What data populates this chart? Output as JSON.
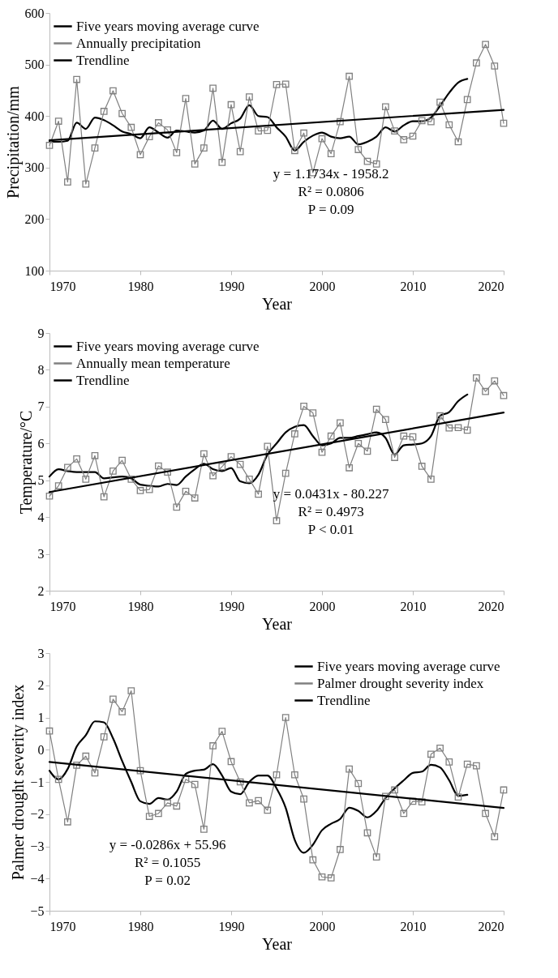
{
  "chart_data": [
    {
      "type": "line",
      "xlabel": "Year",
      "ylabel": "Precipitation/mm",
      "xlim": [
        1970,
        2020
      ],
      "xticks": [
        1970,
        1980,
        1990,
        2000,
        2010,
        2020
      ],
      "ylim": [
        100,
        600
      ],
      "yticks": [
        100,
        200,
        300,
        400,
        500,
        600
      ],
      "legend": "top left",
      "annotations": [
        "y = 1.1734x - 1958.2",
        "R² = 0.0806",
        "P = 0.09"
      ],
      "series": [
        {
          "name": "Five years moving average curve",
          "color": "#000000",
          "marker": "none",
          "x": [
            1970,
            1971,
            1972,
            1973,
            1974,
            1975,
            1976,
            1977,
            1978,
            1979,
            1980,
            1981,
            1982,
            1983,
            1984,
            1985,
            1986,
            1987,
            1988,
            1989,
            1990,
            1991,
            1992,
            1993,
            1994,
            1995,
            1996,
            1997,
            1998,
            1999,
            2000,
            2001,
            2002,
            2003,
            2004,
            2005,
            2006,
            2007,
            2008,
            2009,
            2010,
            2011,
            2012,
            2013,
            2014,
            2015,
            2016
          ],
          "values": [
            350,
            350,
            352,
            387,
            375,
            397,
            392,
            382,
            370,
            365,
            357,
            378,
            368,
            358,
            372,
            370,
            368,
            372,
            391,
            375,
            386,
            395,
            421,
            400,
            398,
            378,
            360,
            333,
            350,
            362,
            368,
            360,
            357,
            360,
            345,
            350,
            360,
            378,
            370,
            382,
            390,
            390,
            397,
            420,
            445,
            465,
            472
          ]
        },
        {
          "name": "Annually precipitation",
          "color": "#808080",
          "marker": "square",
          "x": [
            1970,
            1971,
            1972,
            1973,
            1974,
            1975,
            1976,
            1977,
            1978,
            1979,
            1980,
            1981,
            1982,
            1983,
            1984,
            1985,
            1986,
            1987,
            1988,
            1989,
            1990,
            1991,
            1992,
            1993,
            1994,
            1995,
            1996,
            1997,
            1998,
            1999,
            2000,
            2001,
            2002,
            2003,
            2004,
            2005,
            2006,
            2007,
            2008,
            2009,
            2010,
            2011,
            2012,
            2013,
            2014,
            2015,
            2016,
            2017,
            2018,
            2019,
            2020
          ],
          "values": [
            343,
            390,
            272,
            471,
            268,
            338,
            409,
            449,
            405,
            378,
            325,
            360,
            387,
            373,
            329,
            434,
            307,
            338,
            454,
            310,
            422,
            331,
            437,
            371,
            372,
            461,
            462,
            333,
            367,
            290,
            356,
            327,
            389,
            477,
            335,
            312,
            307,
            418,
            371,
            354,
            361,
            391,
            389,
            427,
            383,
            350,
            432,
            503,
            539,
            497,
            386
          ]
        },
        {
          "name": "Trendline",
          "color": "#000000",
          "marker": "none",
          "x": [
            1970,
            2020
          ],
          "values": [
            353,
            412
          ]
        }
      ]
    },
    {
      "type": "line",
      "xlabel": "Year",
      "ylabel": "Temperature/°C",
      "xlim": [
        1970,
        2020
      ],
      "xticks": [
        1970,
        1980,
        1990,
        2000,
        2010,
        2020
      ],
      "ylim": [
        2,
        9
      ],
      "yticks": [
        2,
        3,
        4,
        5,
        6,
        7,
        8,
        9
      ],
      "legend": "top left",
      "annotations": [
        "y = 0.0431x - 80.227",
        "R² = 0.4973",
        "P < 0.01"
      ],
      "series": [
        {
          "name": "Five years moving average curve",
          "color": "#000000",
          "marker": "none",
          "x": [
            1970,
            1971,
            1972,
            1973,
            1974,
            1975,
            1976,
            1977,
            1978,
            1979,
            1980,
            1981,
            1982,
            1983,
            1984,
            1985,
            1986,
            1987,
            1988,
            1989,
            1990,
            1991,
            1992,
            1993,
            1994,
            1995,
            1996,
            1997,
            1998,
            1999,
            2000,
            2001,
            2002,
            2003,
            2004,
            2005,
            2006,
            2007,
            2008,
            2009,
            2010,
            2011,
            2012,
            2013,
            2014,
            2015,
            2016
          ],
          "values": [
            5.1,
            5.3,
            5.25,
            5.22,
            5.22,
            5.22,
            5.05,
            5.08,
            5.1,
            5.05,
            4.88,
            4.85,
            4.83,
            4.9,
            4.87,
            5.1,
            5.3,
            5.45,
            5.3,
            5.25,
            5.33,
            4.97,
            4.92,
            5.15,
            5.7,
            6.0,
            6.3,
            6.45,
            6.5,
            6.2,
            5.95,
            6.0,
            6.15,
            6.15,
            6.2,
            6.25,
            6.3,
            6.15,
            5.7,
            5.95,
            5.97,
            6.0,
            6.2,
            6.75,
            6.85,
            7.15,
            7.33
          ]
        },
        {
          "name": "Annually mean temperature",
          "color": "#808080",
          "marker": "square",
          "x": [
            1970,
            1971,
            1972,
            1973,
            1974,
            1975,
            1976,
            1977,
            1978,
            1979,
            1980,
            1981,
            1982,
            1983,
            1984,
            1985,
            1986,
            1987,
            1988,
            1989,
            1990,
            1991,
            1992,
            1993,
            1994,
            1995,
            1996,
            1997,
            1998,
            1999,
            2000,
            2001,
            2002,
            2003,
            2004,
            2005,
            2006,
            2007,
            2008,
            2009,
            2010,
            2011,
            2012,
            2013,
            2014,
            2015,
            2016,
            2017,
            2018,
            2019,
            2020
          ],
          "values": [
            4.57,
            4.85,
            5.35,
            5.58,
            5.03,
            5.67,
            4.55,
            5.25,
            5.54,
            5.03,
            4.72,
            4.75,
            5.39,
            5.22,
            4.27,
            4.7,
            4.52,
            5.72,
            5.12,
            5.37,
            5.64,
            5.43,
            5.03,
            4.62,
            5.92,
            3.9,
            5.19,
            6.26,
            7.01,
            6.83,
            5.76,
            6.2,
            6.56,
            5.34,
            6.0,
            5.79,
            6.93,
            6.65,
            5.62,
            6.2,
            6.18,
            5.38,
            5.03,
            6.75,
            6.42,
            6.43,
            6.36,
            7.78,
            7.41,
            7.7,
            7.3
          ]
        },
        {
          "name": "Trendline",
          "color": "#000000",
          "marker": "none",
          "x": [
            1970,
            2020
          ],
          "values": [
            4.68,
            6.84
          ]
        }
      ]
    },
    {
      "type": "line",
      "xlabel": "Year",
      "ylabel": "Palmer drought severity index",
      "xlim": [
        1970,
        2020
      ],
      "xticks": [
        1970,
        1980,
        1990,
        2000,
        2010,
        2020
      ],
      "ylim": [
        -5,
        3
      ],
      "yticks": [
        -5,
        -4,
        -3,
        -2,
        -1,
        0,
        1,
        2,
        3
      ],
      "legend": "top right",
      "annotations": [
        "y = -0.0286x + 55.96",
        "R² = 0.1055",
        "P = 0.02"
      ],
      "series": [
        {
          "name": "Five years moving average curve",
          "color": "#000000",
          "marker": "none",
          "x": [
            1970,
            1971,
            1972,
            1973,
            1974,
            1975,
            1976,
            1977,
            1978,
            1979,
            1980,
            1981,
            1982,
            1983,
            1984,
            1985,
            1986,
            1987,
            1988,
            1989,
            1990,
            1991,
            1992,
            1993,
            1994,
            1995,
            1996,
            1997,
            1998,
            1999,
            2000,
            2001,
            2002,
            2003,
            2004,
            2005,
            2006,
            2007,
            2008,
            2009,
            2010,
            2011,
            2012,
            2013,
            2014,
            2015,
            2016
          ],
          "values": [
            -0.65,
            -0.92,
            -0.6,
            0.1,
            0.45,
            0.88,
            0.85,
            0.35,
            -0.35,
            -1.0,
            -1.6,
            -1.68,
            -1.5,
            -1.55,
            -1.3,
            -0.75,
            -0.65,
            -0.62,
            -0.45,
            -0.8,
            -1.3,
            -1.38,
            -1.0,
            -0.8,
            -0.8,
            -1.2,
            -1.8,
            -2.8,
            -3.2,
            -2.95,
            -2.5,
            -2.3,
            -2.15,
            -1.8,
            -1.9,
            -2.1,
            -1.9,
            -1.5,
            -1.2,
            -0.95,
            -0.72,
            -0.68,
            -0.47,
            -0.55,
            -0.95,
            -1.43,
            -1.4
          ]
        },
        {
          "name": "Palmer drought severity index",
          "color": "#808080",
          "marker": "square",
          "x": [
            1970,
            1971,
            1972,
            1973,
            1974,
            1975,
            1976,
            1977,
            1978,
            1979,
            1980,
            1981,
            1982,
            1983,
            1984,
            1985,
            1986,
            1987,
            1988,
            1989,
            1990,
            1991,
            1992,
            1993,
            1994,
            1995,
            1996,
            1997,
            1998,
            1999,
            2000,
            2001,
            2002,
            2003,
            2004,
            2005,
            2006,
            2007,
            2008,
            2009,
            2010,
            2011,
            2012,
            2013,
            2014,
            2015,
            2016,
            2017,
            2018,
            2019,
            2020
          ],
          "values": [
            0.58,
            -0.92,
            -2.24,
            -0.48,
            -0.2,
            -0.72,
            0.4,
            1.57,
            1.18,
            1.83,
            -0.65,
            -2.07,
            -1.98,
            -1.65,
            -1.75,
            -0.92,
            -1.08,
            -2.47,
            0.12,
            0.57,
            -0.37,
            -1.0,
            -1.65,
            -1.58,
            -1.88,
            -0.78,
            1.0,
            -0.78,
            -1.53,
            -3.42,
            -3.95,
            -3.98,
            -3.1,
            -0.6,
            -1.05,
            -2.58,
            -3.33,
            -1.45,
            -1.25,
            -1.98,
            -1.6,
            -1.62,
            -0.14,
            0.05,
            -0.38,
            -1.47,
            -0.45,
            -0.5,
            -1.98,
            -2.7,
            -1.25
          ]
        },
        {
          "name": "Trendline",
          "color": "#000000",
          "marker": "none",
          "x": [
            1970,
            2020
          ],
          "values": [
            -0.38,
            -1.81
          ]
        }
      ]
    }
  ]
}
